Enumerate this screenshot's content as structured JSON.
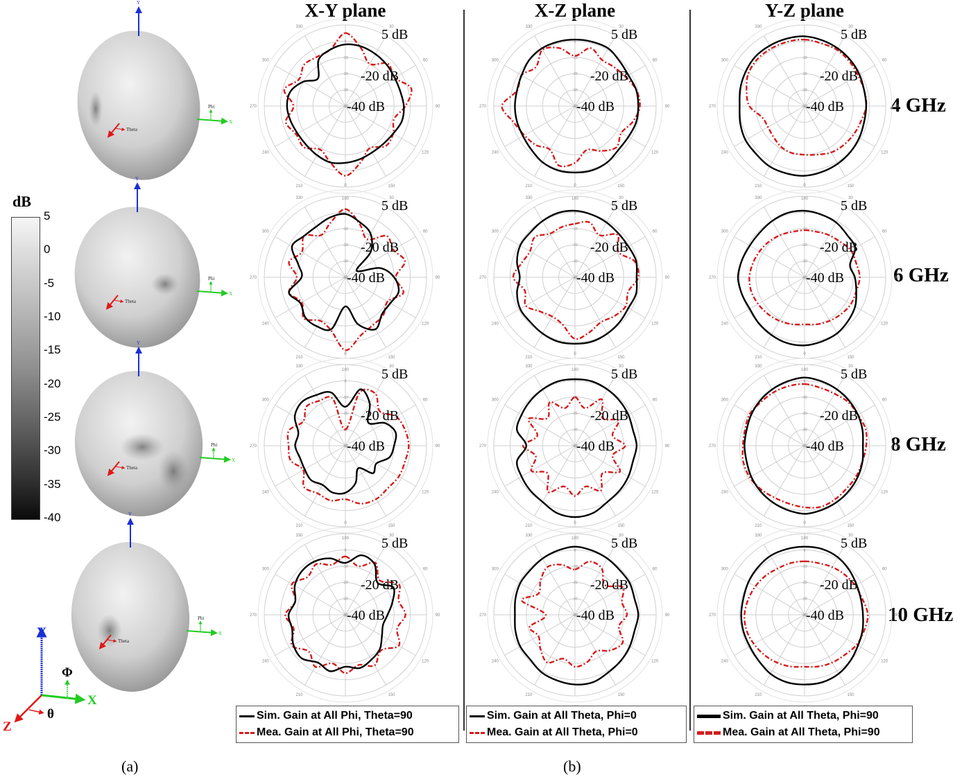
{
  "figure": {
    "column_titles": [
      "X-Y plane",
      "X-Z plane",
      "Y-Z plane"
    ],
    "row_frequencies": [
      "4 GHz",
      "6 GHz",
      "8 GHz",
      "10 GHz"
    ],
    "captions": [
      "(a)",
      "(b)"
    ],
    "polar_annotations": [
      "5 dB",
      "-20 dB",
      "-40 dB"
    ],
    "colorbar": {
      "title": "dB",
      "ticks": [
        "5",
        "0",
        "-5",
        "-10",
        "-15",
        "-20",
        "-25",
        "-30",
        "-35",
        "-40"
      ]
    },
    "pattern_3d_labels": {
      "theta": "Theta",
      "phi": "Phi",
      "x": "X",
      "y": "Y"
    },
    "axes_legend": {
      "y": "Y",
      "x": "X",
      "z": "Z",
      "phi": "Φ",
      "theta": "θ"
    },
    "legends": [
      {
        "sim": "Sim. Gain at All Phi, Theta=90",
        "mea": "Mea. Gain at All Phi, Theta=90"
      },
      {
        "sim": "Sim. Gain at All Theta, Phi=0",
        "mea": "Mea. Gain at All Theta, Phi=0"
      },
      {
        "sim": "Sim. Gain at All Theta, Phi=90",
        "mea": "Mea. Gain at All Theta, Phi=90"
      }
    ],
    "colors": {
      "sim": "#000000",
      "mea": "#d41c1c",
      "grid": "#cfcfcf",
      "x_axis": "#22cc22",
      "y_axis": "#1a2fd6",
      "z_axis": "#e01818"
    }
  },
  "chart_data": {
    "type": "polar",
    "title": "Simulated and measured radiation patterns",
    "angle_ticks": [
      0,
      30,
      60,
      90,
      120,
      150,
      180,
      210,
      240,
      270,
      300,
      330
    ],
    "radial_ticks": [
      -40,
      -30,
      -20,
      -10,
      0
    ],
    "rlim": [
      -40,
      10
    ],
    "angles_deg": [
      0,
      15,
      30,
      45,
      60,
      75,
      90,
      105,
      120,
      135,
      150,
      165,
      180,
      195,
      210,
      225,
      240,
      255,
      270,
      285,
      300,
      315,
      330,
      345
    ],
    "panels": [
      {
        "plane": "X-Y",
        "freq": "4 GHz",
        "sim": [
          -2,
          -2,
          -3,
          -4,
          -5,
          -5,
          -4,
          -4,
          -6,
          -7,
          -7,
          -6,
          -5,
          -4,
          -5,
          -6,
          -6,
          -5,
          -4,
          -5,
          -10,
          -16,
          -7,
          -4
        ],
        "mea": [
          5,
          -3,
          -10,
          -3,
          -5,
          2,
          -3,
          -9,
          -6,
          -5,
          -10,
          -4,
          3,
          -4,
          -9,
          -4,
          -5,
          -2,
          -8,
          -1,
          -7,
          -4,
          -5,
          -4
        ]
      },
      {
        "plane": "X-Y",
        "freq": "6 GHz",
        "sim": [
          -1,
          -5,
          -9,
          -18,
          -32,
          -18,
          -10,
          -6,
          -8,
          -8,
          -3,
          -10,
          -22,
          -7,
          -5,
          -5,
          -8,
          -4,
          -13,
          -10,
          -2,
          -4,
          -4,
          -2
        ],
        "mea": [
          2,
          -6,
          -13,
          -4,
          -6,
          -2,
          -9,
          -3,
          -10,
          -7,
          -6,
          -3,
          5,
          -6,
          -9,
          -4,
          -9,
          -4,
          -10,
          -4,
          -9,
          -4,
          -10,
          -5
        ]
      },
      {
        "plane": "X-Y",
        "freq": "8 GHz",
        "sim": [
          -16,
          -4,
          -10,
          -20,
          -12,
          -8,
          -10,
          -12,
          -18,
          -16,
          -24,
          -16,
          -11,
          -10,
          -12,
          -10,
          -11,
          -11,
          -9,
          -10,
          -4,
          -2,
          -4,
          -6
        ],
        "mea": [
          -30,
          -6,
          -3,
          -10,
          -4,
          -2,
          -1,
          -2,
          -2,
          -3,
          -2,
          -3,
          -7,
          -5,
          -6,
          -4,
          -10,
          -5,
          -5,
          -4,
          -10,
          -6,
          -8,
          -10
        ]
      },
      {
        "plane": "X-Y",
        "freq": "10 GHz",
        "sim": [
          -8,
          -2,
          -4,
          -12,
          -6,
          -10,
          -14,
          -16,
          -14,
          -10,
          -8,
          -6,
          -8,
          -4,
          -6,
          -2,
          -3,
          -6,
          -5,
          -8,
          -4,
          -2,
          -2,
          -4
        ],
        "mea": [
          -4,
          -9,
          -3,
          -10,
          -2,
          -6,
          -3,
          -7,
          -2,
          -9,
          -4,
          -8,
          -4,
          -9,
          -3,
          -8,
          -2,
          -7,
          -3,
          -8,
          -2,
          -7,
          -4,
          -8
        ]
      },
      {
        "plane": "X-Z",
        "freq": "4 GHz",
        "sim": [
          1,
          1,
          1,
          -1,
          -2,
          -1,
          -1,
          -1,
          -2,
          -2,
          0,
          1,
          1,
          1,
          0,
          -2,
          -3,
          -3,
          -3,
          -3,
          -2,
          0,
          1,
          1
        ],
        "mea": [
          -9,
          -3,
          -7,
          -6,
          -4,
          -1,
          0,
          -3,
          -7,
          -4,
          -8,
          -12,
          -5,
          -2,
          -9,
          -6,
          -4,
          -1,
          5,
          -3,
          -2,
          -6,
          0,
          -3
        ]
      },
      {
        "plane": "X-Z",
        "freq": "6 GHz",
        "sim": [
          1,
          0,
          -1,
          -2,
          -2,
          -1,
          -2,
          -1,
          -2,
          -1,
          0,
          1,
          1,
          1,
          0,
          -1,
          -1,
          -3,
          -6,
          -3,
          -1,
          -1,
          0,
          1
        ],
        "mea": [
          -7,
          -5,
          -10,
          -3,
          -9,
          -2,
          -1,
          -6,
          -4,
          -6,
          -8,
          -5,
          -2,
          -10,
          -12,
          -10,
          -5,
          -8,
          -2,
          -6,
          -8,
          -5,
          -9,
          -8
        ]
      },
      {
        "plane": "X-Z",
        "freq": "8 GHz",
        "sim": [
          1,
          1,
          0,
          -1,
          -2,
          -3,
          -2,
          -3,
          -2,
          -1,
          0,
          3,
          4,
          3,
          0,
          -1,
          -2,
          -3,
          -10,
          -3,
          -2,
          -1,
          0,
          1
        ],
        "mea": [
          -10,
          -16,
          -7,
          -16,
          -9,
          -16,
          -9,
          -16,
          -8,
          -16,
          -8,
          -14,
          -9,
          -14,
          -7,
          -16,
          -9,
          -15,
          -8,
          -16,
          -7,
          -16,
          -9,
          -16
        ]
      },
      {
        "plane": "X-Z",
        "freq": "10 GHz",
        "sim": [
          2,
          1,
          0,
          -1,
          -1,
          -2,
          -1,
          -2,
          -1,
          0,
          1,
          3,
          3,
          2,
          1,
          -1,
          -1,
          -2,
          -3,
          -2,
          -1,
          -1,
          0,
          1
        ],
        "mea": [
          -12,
          -6,
          -7,
          -14,
          -6,
          -10,
          -8,
          -12,
          -6,
          -9,
          -14,
          -10,
          -8,
          -12,
          -6,
          -10,
          -14,
          -11,
          -22,
          -6,
          -14,
          -10,
          -6,
          -8
        ]
      },
      {
        "plane": "Y-Z",
        "freq": "4 GHz",
        "sim": [
          3,
          2,
          1,
          0,
          -1,
          -2,
          -2,
          -2,
          -1,
          0,
          1,
          2,
          3,
          3,
          3,
          2,
          2,
          1,
          0,
          1,
          2,
          3,
          3,
          3
        ],
        "mea": [
          1,
          0,
          0,
          -1,
          -2,
          -2,
          -2,
          -4,
          -5,
          -6,
          -7,
          -9,
          -10,
          -10,
          -11,
          -13,
          -14,
          -13,
          -6,
          -3,
          0,
          1,
          1,
          1
        ]
      },
      {
        "plane": "Y-Z",
        "freq": "6 GHz",
        "sim": [
          1,
          0,
          -1,
          -3,
          -4,
          -11,
          -9,
          -7,
          -4,
          -2,
          0,
          1,
          2,
          2,
          1,
          0,
          -1,
          0,
          1,
          0,
          -1,
          -1,
          0,
          1
        ],
        "mea": [
          -11,
          -11,
          -10,
          -9,
          -7,
          -7,
          -6,
          -7,
          -7,
          -8,
          -9,
          -10,
          -11,
          -10,
          -9,
          -8,
          -7,
          -6,
          -6,
          -7,
          -8,
          -9,
          -10,
          -11
        ]
      },
      {
        "plane": "Y-Z",
        "freq": "8 GHz",
        "sim": [
          2,
          1,
          0,
          -1,
          -2,
          -3,
          -4,
          -3,
          -2,
          -1,
          0,
          1,
          2,
          1,
          0,
          -1,
          -2,
          -3,
          -3,
          -3,
          -2,
          -1,
          0,
          1
        ],
        "mea": [
          -2,
          -3,
          -3,
          -2,
          -2,
          -1,
          -2,
          -3,
          -3,
          -3,
          -2,
          -1,
          -2,
          -3,
          -3,
          -2,
          -1,
          -1,
          -2,
          -2,
          -1,
          -2,
          -2,
          -2
        ]
      },
      {
        "plane": "Y-Z",
        "freq": "10 GHz",
        "sim": [
          2,
          2,
          1,
          -1,
          -3,
          -4,
          -4,
          -3,
          -2,
          0,
          2,
          3,
          3,
          3,
          2,
          0,
          -1,
          -1,
          -1,
          -1,
          0,
          1,
          2,
          2
        ],
        "mea": [
          -7,
          -7,
          -6,
          -5,
          -4,
          -3,
          -1,
          -2,
          -3,
          -5,
          -6,
          -7,
          -8,
          -7,
          -6,
          -5,
          -4,
          -3,
          -3,
          -4,
          -5,
          -6,
          -7,
          -7
        ]
      }
    ]
  }
}
